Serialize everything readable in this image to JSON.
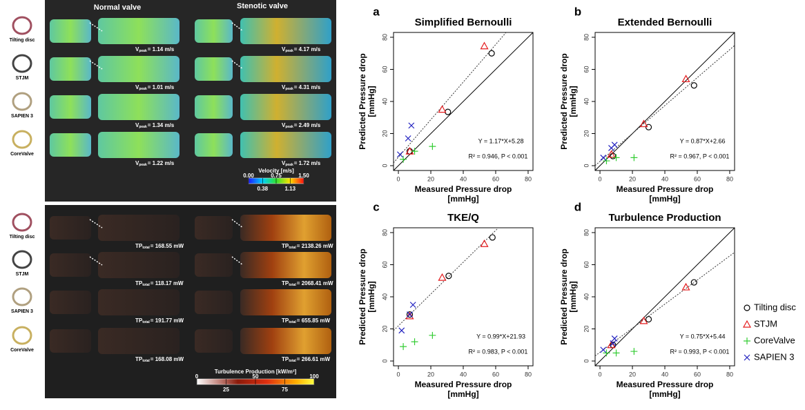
{
  "figure": {
    "columns": [
      "Normal valve",
      "Stenotic valve"
    ],
    "valves": [
      "Tilting disc",
      "STJM",
      "SAPIEN 3",
      "CoreValve"
    ],
    "velocity": {
      "symbol": "V",
      "subscript": "peak",
      "normal": [
        "= 1.14 m/s",
        "= 1.01 m/s",
        "= 1.34 m/s",
        "= 1.22 m/s"
      ],
      "stenotic": [
        "= 4.17 m/s",
        "= 4.31 m/s",
        "= 2.49 m/s",
        "= 1.72 m/s"
      ],
      "colorbar": {
        "title": "Velocity [m/s]",
        "lim": [
          0,
          1.5
        ],
        "ticks": [
          {
            "value": 0,
            "label": "0.00"
          },
          0.38,
          0.75,
          1.13,
          {
            "value": 1.5,
            "label": "1.50"
          }
        ]
      }
    },
    "turbulence": {
      "symbol": "TP",
      "subscript": "total",
      "normal": [
        "= 168.55 mW",
        "= 118.17 mW",
        "= 191.77 mW",
        "= 168.08 mW"
      ],
      "stenotic": [
        "= 2138.26 mW",
        "= 2068.41 mW",
        "= 655.85 mW",
        "= 266.61 mW"
      ],
      "colorbar": {
        "title": "Turbulence Production [kW/m³]",
        "lim": [
          0,
          100
        ],
        "ticks": [
          0,
          25,
          50,
          75,
          100
        ]
      }
    }
  },
  "chart_data": [
    {
      "type": "scatter",
      "label": "a",
      "title": "Simplified Bernoulli",
      "xlabel": [
        "Measured Pressure drop",
        "[mmHg]"
      ],
      "ylabel": [
        "Predicted Pressure drop",
        "[mmHg]"
      ],
      "xlim": [
        -3,
        83
      ],
      "ylim": [
        -3,
        83
      ],
      "xticks": [
        0,
        20,
        40,
        60,
        80
      ],
      "yticks": [
        0,
        20,
        40,
        60,
        80
      ],
      "identity_line": true,
      "fit": {
        "slope": 1.17,
        "intercept": 5.28,
        "label": "Y = 1.17*X+5.28"
      },
      "stats": "R² = 0.946, P < 0.001",
      "series": [
        {
          "marker": "circle",
          "color": "#000000",
          "x": [
            57.5,
            30.5,
            7
          ],
          "values": [
            70,
            33.5,
            9
          ]
        },
        {
          "marker": "triangle",
          "color": "#e41a1c",
          "x": [
            53,
            27,
            7
          ],
          "values": [
            74.5,
            35,
            9
          ]
        },
        {
          "marker": "plus",
          "color": "#33cc33",
          "x": [
            3,
            10,
            21
          ],
          "values": [
            4,
            9,
            12
          ]
        },
        {
          "marker": "cross",
          "color": "#1f1fbf",
          "x": [
            1,
            6,
            8
          ],
          "values": [
            7,
            17,
            25
          ]
        }
      ]
    },
    {
      "type": "scatter",
      "label": "b",
      "title": "Extended Bernoulli",
      "xlabel": [
        "Measured Pressure drop",
        "[mmHg]"
      ],
      "ylabel": [
        "Predicted Pressure drop",
        "[mmHg]"
      ],
      "xlim": [
        -3,
        83
      ],
      "ylim": [
        -3,
        83
      ],
      "xticks": [
        0,
        20,
        40,
        60,
        80
      ],
      "yticks": [
        0,
        20,
        40,
        60,
        80
      ],
      "identity_line": true,
      "fit": {
        "slope": 0.87,
        "intercept": 2.66,
        "label": "Y = 0.87*X+2.66"
      },
      "stats": "R² = 0.967, P < 0.001",
      "series": [
        {
          "marker": "circle",
          "color": "#000000",
          "x": [
            58,
            30,
            8
          ],
          "values": [
            50,
            24,
            6
          ]
        },
        {
          "marker": "triangle",
          "color": "#e41a1c",
          "x": [
            53,
            27,
            7
          ],
          "values": [
            54,
            26,
            7
          ]
        },
        {
          "marker": "plus",
          "color": "#33cc33",
          "x": [
            4,
            10,
            21
          ],
          "values": [
            3,
            5,
            5
          ]
        },
        {
          "marker": "cross",
          "color": "#1f1fbf",
          "x": [
            2,
            7,
            9
          ],
          "values": [
            5,
            11,
            13
          ]
        }
      ]
    },
    {
      "type": "scatter",
      "label": "c",
      "title": "TKE/Q",
      "xlabel": [
        "Measured Pressure drop",
        "[mmHg]"
      ],
      "ylabel": [
        "Predicted Pressure drop",
        "[mmHg]"
      ],
      "xlim": [
        -3,
        83
      ],
      "ylim": [
        -3,
        83
      ],
      "xticks": [
        0,
        20,
        40,
        60,
        80
      ],
      "yticks": [
        0,
        20,
        40,
        60,
        80
      ],
      "identity_line": false,
      "fit": {
        "slope": 0.99,
        "intercept": 21.93,
        "label": "Y = 0.99*X+21.93"
      },
      "stats": "R² = 0.983, P < 0.001",
      "series": [
        {
          "marker": "circle",
          "color": "#000000",
          "x": [
            58,
            31,
            7
          ],
          "values": [
            77,
            53,
            29
          ]
        },
        {
          "marker": "triangle",
          "color": "#e41a1c",
          "x": [
            53,
            27,
            7
          ],
          "values": [
            73,
            52,
            28
          ]
        },
        {
          "marker": "plus",
          "color": "#33cc33",
          "x": [
            3,
            10,
            21
          ],
          "values": [
            9,
            12,
            16
          ]
        },
        {
          "marker": "cross",
          "color": "#1f1fbf",
          "x": [
            2,
            7,
            9
          ],
          "values": [
            19,
            29,
            35
          ]
        }
      ]
    },
    {
      "type": "scatter",
      "label": "d",
      "title": "Turbulence Production",
      "xlabel": [
        "Measured Pressure drop",
        "[mmHg]"
      ],
      "ylabel": [
        "Predicted Pressure drop",
        "[mmHg]"
      ],
      "xlim": [
        -3,
        83
      ],
      "ylim": [
        -3,
        83
      ],
      "xticks": [
        0,
        20,
        40,
        60,
        80
      ],
      "yticks": [
        0,
        20,
        40,
        60,
        80
      ],
      "identity_line": true,
      "fit": {
        "slope": 0.75,
        "intercept": 5.44,
        "label": "Y = 0.75*X+5.44"
      },
      "stats": "R² = 0.993, P < 0.001",
      "legend": "right",
      "series": [
        {
          "name": "Tilting disc",
          "marker": "circle",
          "color": "#000000",
          "x": [
            58,
            30,
            8
          ],
          "values": [
            49,
            26,
            10
          ]
        },
        {
          "name": "STJM",
          "marker": "triangle",
          "color": "#e41a1c",
          "x": [
            53,
            27,
            7
          ],
          "values": [
            46,
            25,
            10
          ]
        },
        {
          "name": "CoreValve",
          "marker": "plus",
          "color": "#33cc33",
          "x": [
            4,
            10,
            21
          ],
          "values": [
            5,
            5,
            6
          ]
        },
        {
          "name": "SAPIEN 3",
          "marker": "cross",
          "color": "#1f1fbf",
          "x": [
            2,
            8,
            9
          ],
          "values": [
            7,
            11,
            14
          ]
        }
      ]
    }
  ]
}
